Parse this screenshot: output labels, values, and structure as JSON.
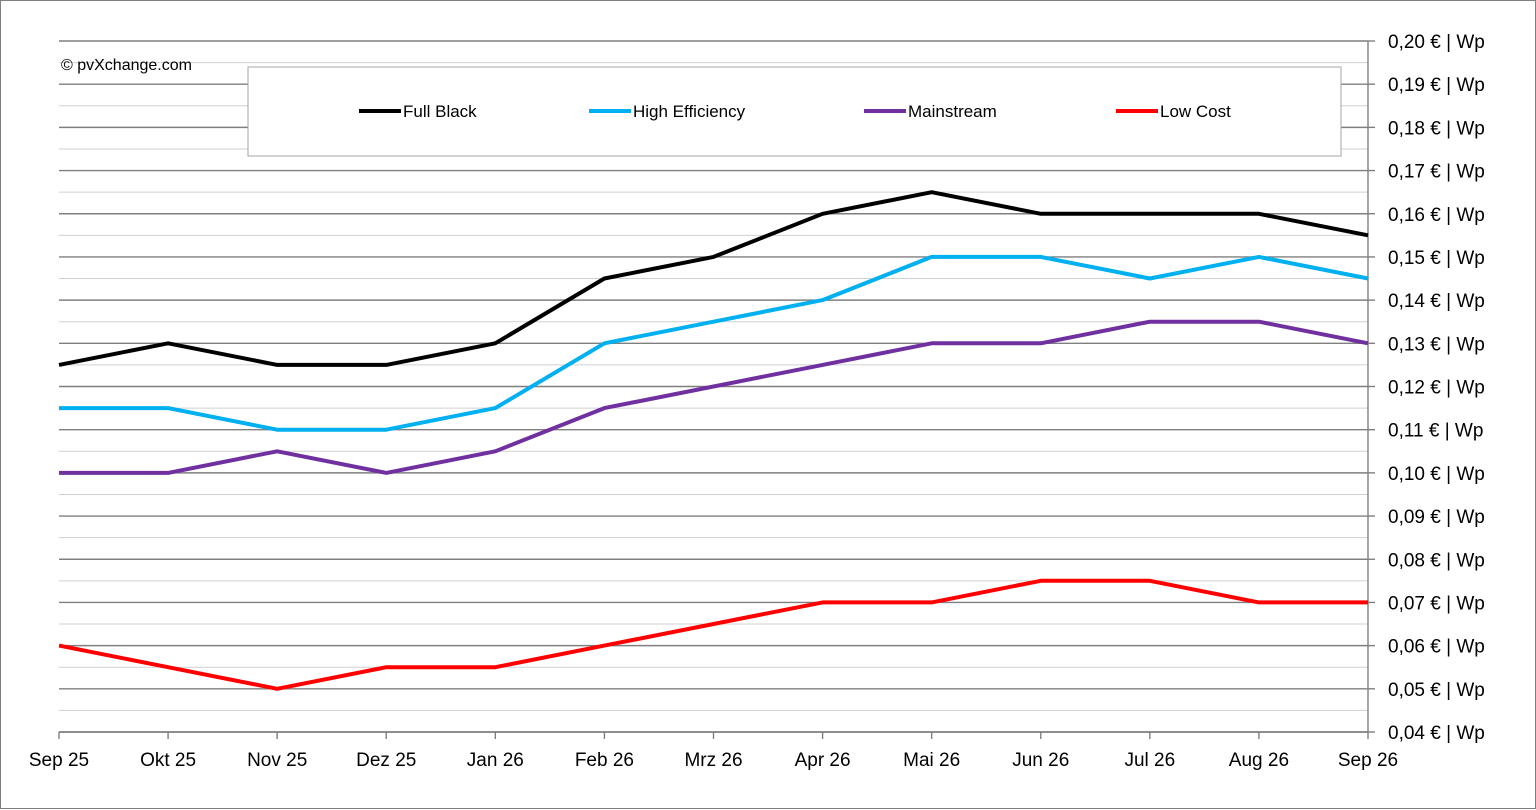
{
  "copyright": "© pvXchange.com",
  "chart_data": {
    "type": "line",
    "title": "",
    "xlabel": "",
    "ylabel": "",
    "categories": [
      "Sep 25",
      "Okt 25",
      "Nov 25",
      "Dez 25",
      "Jan 26",
      "Feb 26",
      "Mrz 26",
      "Apr 26",
      "Mai 26",
      "Jun 26",
      "Jul 26",
      "Aug 26",
      "Sep 26"
    ],
    "y_ticks": [
      "0,20 € | Wp",
      "0,19 € | Wp",
      "0,18 € | Wp",
      "0,17 € | Wp",
      "0,16 € | Wp",
      "0,15 € | Wp",
      "0,14 € | Wp",
      "0,13 € | Wp",
      "0,12 € | Wp",
      "0,11 € | Wp",
      "0,10 € | Wp",
      "0,09 € | Wp",
      "0,08 € | Wp",
      "0,07 € | Wp",
      "0,06 € | Wp",
      "0,05 € | Wp",
      "0,04 € | Wp"
    ],
    "ylim": [
      0.04,
      0.2
    ],
    "y_axis_side": "right",
    "grid": true,
    "legend_position": "top",
    "series": [
      {
        "name": "Full Black",
        "color": "#000000",
        "values": [
          0.125,
          0.13,
          0.125,
          0.125,
          0.13,
          0.145,
          0.15,
          0.16,
          0.165,
          0.16,
          0.16,
          0.16,
          0.155
        ]
      },
      {
        "name": "High Efficiency",
        "color": "#00b0f0",
        "values": [
          0.115,
          0.115,
          0.11,
          0.11,
          0.115,
          0.13,
          0.135,
          0.14,
          0.15,
          0.15,
          0.145,
          0.15,
          0.145
        ]
      },
      {
        "name": "Mainstream",
        "color": "#7030a0",
        "values": [
          0.1,
          0.1,
          0.105,
          0.1,
          0.105,
          0.115,
          0.12,
          0.125,
          0.13,
          0.13,
          0.135,
          0.135,
          0.13
        ]
      },
      {
        "name": "Low Cost",
        "color": "#ff0000",
        "values": [
          0.06,
          0.055,
          0.05,
          0.055,
          0.055,
          0.06,
          0.065,
          0.07,
          0.07,
          0.075,
          0.075,
          0.07,
          0.07
        ]
      }
    ]
  }
}
